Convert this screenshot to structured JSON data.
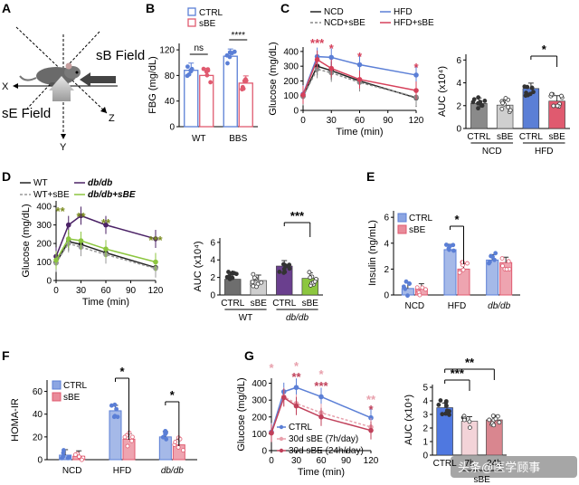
{
  "colors": {
    "ctrl": "#5b7fd6",
    "sbe": "#e05a6f",
    "ncd": "#222222",
    "ncd_sbe": "#8a8a8a",
    "hfd": "#5b7fd6",
    "hfd_sbe": "#d6405a",
    "wt": "#222222",
    "wt_sbe": "#9a9a9a",
    "dbdb": "#4b2266",
    "dbdb_sbe": "#8cc63f",
    "sig_red": "#d6405a",
    "sig_olive": "#7a8b1e",
    "g_30d7": "#e8a0ac",
    "g_30d24": "#c0405a"
  },
  "panel_a": {
    "label": "A",
    "sb_field": "sB Field",
    "se_field": "sE Field",
    "axis_x": "X",
    "axis_y": "Y",
    "axis_z": "Z"
  },
  "watermark": "头条@医学顾事",
  "chart_data": [
    {
      "id": "B",
      "label": "B",
      "type": "bar",
      "ylabel": "FBG (mg/dL)",
      "yticks": [
        0,
        40,
        80,
        120
      ],
      "ylim": [
        0,
        130
      ],
      "legend": [
        "CTRL",
        "sBE"
      ],
      "categories": [
        "WT",
        "BBS"
      ],
      "series": [
        {
          "name": "CTRL",
          "values": [
            88,
            110
          ]
        },
        {
          "name": "sBE",
          "values": [
            80,
            68
          ]
        }
      ],
      "annotations": [
        "ns",
        "****"
      ]
    },
    {
      "id": "C_line",
      "label": "C",
      "type": "line",
      "xlabel": "Time (min)",
      "ylabel": "Glucose (mg/dL)",
      "x": [
        0,
        15,
        30,
        60,
        120
      ],
      "xticks": [
        0,
        30,
        60,
        90,
        120
      ],
      "yticks": [
        0,
        100,
        200,
        300,
        400
      ],
      "ylim": [
        0,
        430
      ],
      "series": [
        {
          "name": "NCD",
          "values": [
            95,
            300,
            270,
            200,
            85
          ]
        },
        {
          "name": "NCD+sBE",
          "values": [
            95,
            280,
            255,
            190,
            90
          ]
        },
        {
          "name": "HFD",
          "values": [
            110,
            365,
            360,
            310,
            240
          ]
        },
        {
          "name": "HFD+sBE",
          "values": [
            105,
            345,
            285,
            210,
            135
          ]
        }
      ],
      "sig_labels": [
        "***",
        "*",
        "*",
        "*"
      ]
    },
    {
      "id": "C_auc",
      "type": "bar",
      "ylabel": "AUC (x10⁴)",
      "yticks": [
        0,
        2,
        4,
        6
      ],
      "ylim": [
        0,
        6.5
      ],
      "categories": [
        "CTRL",
        "sBE",
        "CTRL",
        "sBE"
      ],
      "groups": [
        "NCD",
        "HFD"
      ],
      "values": [
        2.2,
        2.05,
        3.5,
        2.4
      ],
      "annotations": [
        "*"
      ]
    },
    {
      "id": "D_line",
      "label": "D",
      "type": "line",
      "xlabel": "Time (min)",
      "ylabel": "Glucose (mg/dL)",
      "x": [
        0,
        15,
        30,
        60,
        120
      ],
      "xticks": [
        0,
        30,
        60,
        90,
        120
      ],
      "yticks": [
        0,
        100,
        200,
        300,
        400
      ],
      "ylim": [
        0,
        430
      ],
      "series": [
        {
          "name": "WT",
          "values": [
            95,
            210,
            195,
            150,
            70
          ]
        },
        {
          "name": "WT+sBE",
          "values": [
            95,
            200,
            180,
            140,
            65
          ]
        },
        {
          "name": "db/db",
          "values": [
            130,
            300,
            350,
            300,
            225
          ]
        },
        {
          "name": "db/db+sBE",
          "values": [
            110,
            225,
            215,
            170,
            100
          ]
        }
      ],
      "sig_labels": [
        "**",
        "**",
        "**",
        "***"
      ]
    },
    {
      "id": "D_auc",
      "type": "bar",
      "ylabel": "AUC (x10⁴)",
      "yticks": [
        0,
        2,
        4,
        6
      ],
      "ylim": [
        0,
        6.5
      ],
      "categories": [
        "CTRL",
        "sBE",
        "CTRL",
        "sBE"
      ],
      "groups": [
        "WT",
        "db/db"
      ],
      "values": [
        1.8,
        1.65,
        3.3,
        1.9
      ],
      "annotations": [
        "***"
      ]
    },
    {
      "id": "E",
      "label": "E",
      "type": "bar",
      "ylabel": "Insulin (ng/mL)",
      "yticks": [
        0,
        2,
        4,
        6
      ],
      "ylim": [
        0,
        6.5
      ],
      "legend": [
        "CTRL",
        "sBE"
      ],
      "categories": [
        "NCD",
        "HFD",
        "db/db"
      ],
      "series": [
        {
          "name": "CTRL",
          "values": [
            0.5,
            3.5,
            2.7
          ]
        },
        {
          "name": "sBE",
          "values": [
            0.45,
            2.0,
            2.5
          ]
        }
      ],
      "annotations": [
        "*"
      ]
    },
    {
      "id": "F",
      "label": "F",
      "type": "bar",
      "ylabel": "HOMA-IR",
      "yticks": [
        0,
        20,
        40,
        60
      ],
      "ylim": [
        0,
        70
      ],
      "legend": [
        "CTRL",
        "sBE"
      ],
      "categories": [
        "NCD",
        "HFD",
        "db/db"
      ],
      "series": [
        {
          "name": "CTRL",
          "values": [
            4,
            43,
            20
          ]
        },
        {
          "name": "sBE",
          "values": [
            3,
            18,
            13
          ]
        }
      ],
      "annotations": [
        "*",
        "*"
      ]
    },
    {
      "id": "G_line",
      "label": "G",
      "type": "line",
      "xlabel": "Time (min)",
      "ylabel": "Glucose (mg/dL)",
      "x": [
        0,
        15,
        30,
        60,
        120
      ],
      "xticks": [
        0,
        30,
        60,
        90,
        120
      ],
      "yticks": [
        0,
        100,
        200,
        300,
        400
      ],
      "ylim": [
        0,
        430
      ],
      "series": [
        {
          "name": "CTRL",
          "values": [
            110,
            350,
            375,
            320,
            195
          ]
        },
        {
          "name": "30d sBE (7h/day)",
          "values": [
            105,
            320,
            280,
            225,
            140
          ]
        },
        {
          "name": "30d sBE (24h/day)",
          "values": [
            105,
            315,
            265,
            200,
            120
          ]
        }
      ],
      "sig_7h": [
        "*",
        "*",
        "*",
        "**"
      ],
      "sig_24h": [
        "**",
        "***",
        "*"
      ]
    },
    {
      "id": "G_auc",
      "type": "bar",
      "ylabel": "AUC (x10⁴)",
      "yticks": [
        0,
        1,
        2,
        3,
        4,
        5
      ],
      "ylim": [
        0,
        5.2
      ],
      "categories": [
        "CTRL",
        "7h",
        "24h"
      ],
      "group_label": "sBE",
      "values": [
        3.5,
        2.5,
        2.6
      ],
      "annotations": [
        "***",
        "**"
      ]
    }
  ]
}
